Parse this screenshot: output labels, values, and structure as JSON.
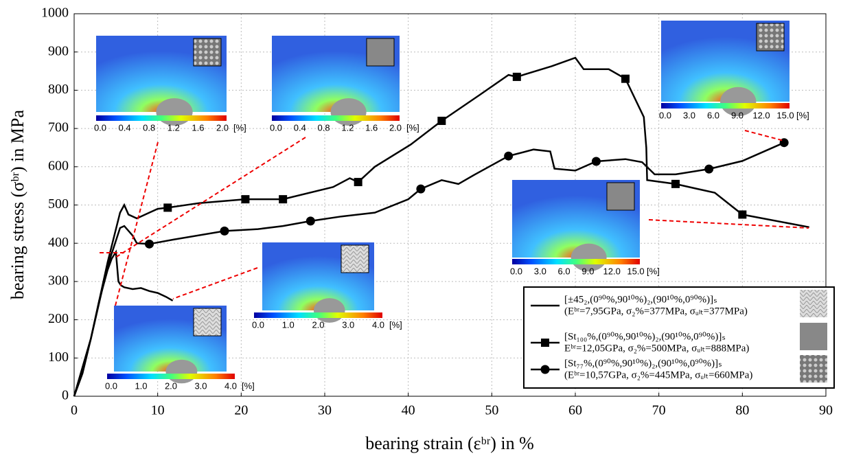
{
  "chart_data": {
    "type": "line",
    "x_label": "bearing strain (εᵇʳ) in %",
    "y_label": "bearing stress (σᵇʳ) in MPa",
    "xlim": [
      0,
      90
    ],
    "xticks": [
      0,
      10,
      20,
      30,
      40,
      50,
      60,
      70,
      80,
      90
    ],
    "ylim": [
      0,
      1000
    ],
    "yticks": [
      0,
      100,
      200,
      300,
      400,
      500,
      600,
      700,
      800,
      900,
      1000
    ],
    "grid": true,
    "legend": "lower right",
    "series": [
      {
        "name": "[±45₂,(0⁹⁰%,90¹⁰%)₂,(90¹⁰%,0⁹⁰%)]ₛ",
        "detail": "(Eᵇʳ=7,95GPa, σ₂%=377MPa, σᵤₗₜ=377MPa)",
        "color": "#000000",
        "marker": "none",
        "marker_indices": [],
        "x": [
          0,
          1,
          2,
          3,
          4,
          4.5,
          5.0,
          5.3,
          5.6,
          6,
          7,
          8,
          9,
          10,
          11,
          11.8
        ],
        "values": [
          0,
          60,
          150,
          250,
          330,
          360,
          377,
          300,
          290,
          285,
          280,
          283,
          275,
          270,
          260,
          250
        ]
      },
      {
        "name": "[St₁₀₀%,(0⁹⁰%,90¹⁰%)₂,(90¹⁰%,0⁹⁰%)]ₛ",
        "detail": "Eᵇʳ=12,05GPa, σ₂%=500MPa, σᵤₗₜ=888MPa)",
        "color": "#000000",
        "marker": "square",
        "marker_indices": [
          9,
          11,
          12,
          15,
          18,
          21,
          26,
          30,
          32
        ],
        "x": [
          0,
          2,
          4,
          5.5,
          6.0,
          6.5,
          7.5,
          9,
          10,
          11.2,
          15,
          20.5,
          25,
          31,
          33,
          34,
          36,
          40.3,
          44,
          48.5,
          52,
          53,
          57.2,
          60,
          61,
          64,
          66,
          68.2,
          68.5,
          68.6,
          72,
          76.7,
          80,
          88
        ],
        "values": [
          0,
          150,
          350,
          480,
          500,
          475,
          465,
          480,
          490,
          493,
          505,
          515,
          515,
          547,
          570,
          560,
          600,
          658,
          720,
          787,
          840,
          835,
          863,
          885,
          855,
          855,
          830,
          730,
          650,
          565,
          555,
          532,
          475,
          442
        ]
      },
      {
        "name": "[St₇₇%,(0⁹⁰%,90¹⁰%)₂,(90¹⁰%,0⁹⁰%)]ₛ",
        "detail": "(Eᵇʳ=10,57GPa, σ₂%=445MPa, σᵤₗₜ=660MPa)",
        "color": "#000000",
        "marker": "circle",
        "marker_indices": [
          7,
          9,
          12,
          16,
          20,
          25,
          30,
          32
        ],
        "x": [
          0,
          2,
          4,
          5.5,
          6,
          7,
          7.5,
          9,
          12,
          18,
          22,
          25,
          28.3,
          32,
          36,
          40,
          41.5,
          44,
          46,
          48,
          52,
          55,
          57,
          57.5,
          60,
          62.5,
          66,
          68,
          69.5,
          72,
          76,
          80,
          85
        ],
        "values": [
          0,
          150,
          340,
          440,
          445,
          420,
          400,
          398,
          410,
          432,
          437,
          445,
          458,
          470,
          480,
          515,
          542,
          565,
          555,
          580,
          628,
          645,
          640,
          595,
          590,
          614,
          620,
          612,
          580,
          580,
          594,
          615,
          663
        ]
      }
    ],
    "insets": [
      {
        "ticks": [
          "0.0",
          "0.4",
          "0.8",
          "1.2",
          "1.6",
          "2.0"
        ],
        "unit": "[%]"
      },
      {
        "ticks": [
          "0.0",
          "0.4",
          "0.8",
          "1.2",
          "1.6",
          "2.0"
        ],
        "unit": "[%]"
      },
      {
        "ticks": [
          "0.0",
          "3.0",
          "6.0",
          "9.0",
          "12.0",
          "15.0"
        ],
        "unit": "[%]"
      },
      {
        "ticks": [
          "0.0",
          "3.0",
          "6.0",
          "9.0",
          "12.0",
          "15.0"
        ],
        "unit": "[%]"
      },
      {
        "ticks": [
          "0.0",
          "1.0",
          "2.0",
          "3.0",
          "4.0"
        ],
        "unit": "[%]"
      },
      {
        "ticks": [
          "0.0",
          "1.0",
          "2.0",
          "3.0",
          "4.0"
        ],
        "unit": "[%]"
      }
    ]
  }
}
